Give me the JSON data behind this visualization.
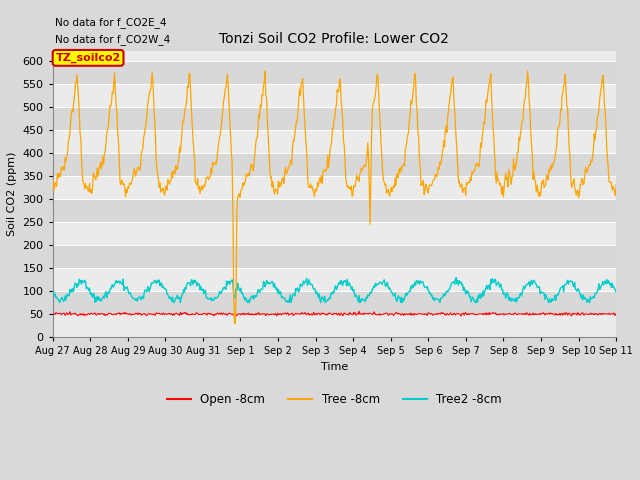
{
  "title": "Tonzi Soil CO2 Profile: Lower CO2",
  "ylabel": "Soil CO2 (ppm)",
  "xlabel": "Time",
  "annotation1": "No data for f_CO2E_4",
  "annotation2": "No data for f_CO2W_4",
  "legend_box_label": "TZ_soilco2",
  "ylim": [
    0,
    620
  ],
  "yticks": [
    0,
    50,
    100,
    150,
    200,
    250,
    300,
    350,
    400,
    450,
    500,
    550,
    600
  ],
  "color_open": "#ff0000",
  "color_tree": "#ffa500",
  "color_tree2": "#00cccc",
  "legend_labels": [
    "Open -8cm",
    "Tree -8cm",
    "Tree2 -8cm"
  ],
  "bg_color": "#d9d9d9",
  "plot_bg_light": "#ebebeb",
  "plot_bg_dark": "#d8d8d8",
  "tick_labels": [
    "Aug 27",
    "Aug 28",
    "Aug 29",
    "Aug 30",
    "Aug 31",
    "Sep 1",
    "Sep 2",
    "Sep 3",
    "Sep 4",
    "Sep 5",
    "Sep 6",
    "Sep 7",
    "Sep 8",
    "Sep 9",
    "Sep 10",
    "Sep 11"
  ],
  "figsize": [
    6.4,
    4.8
  ],
  "dpi": 100
}
